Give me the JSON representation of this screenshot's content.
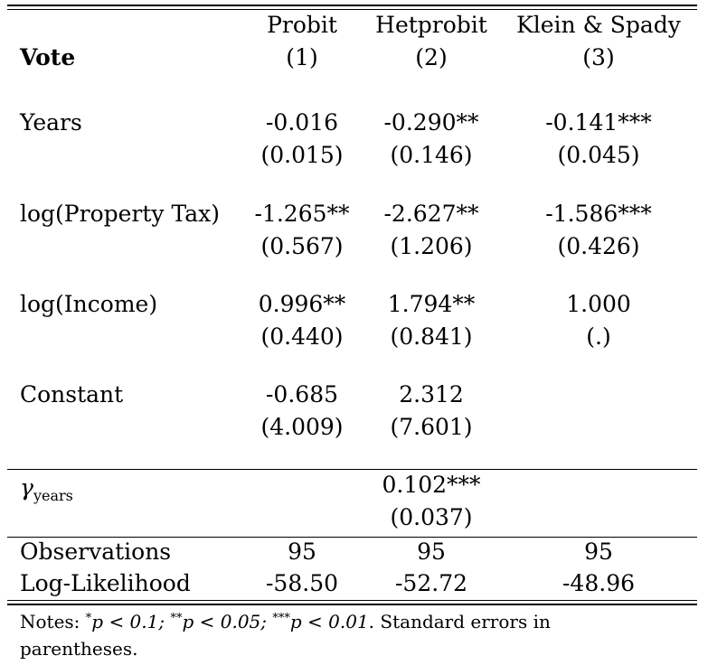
{
  "header": {
    "dep_var": "Vote",
    "columns": [
      {
        "name": "Probit",
        "num": "(1)"
      },
      {
        "name": "Hetprobit",
        "num": "(2)"
      },
      {
        "name": "Klein & Spady",
        "num": "(3)"
      }
    ]
  },
  "rows": [
    {
      "label": "Years",
      "coef": [
        "-0.016",
        "-0.290**",
        "-0.141***"
      ],
      "se": [
        "(0.015)",
        "(0.146)",
        "(0.045)"
      ]
    },
    {
      "label": "log(Property Tax)",
      "coef": [
        "-1.265**",
        "-2.627**",
        "-1.586***"
      ],
      "se": [
        "(0.567)",
        "(1.206)",
        "(0.426)"
      ]
    },
    {
      "label": "log(Income)",
      "coef": [
        "0.996**",
        "1.794**",
        "1.000"
      ],
      "se": [
        "(0.440)",
        "(0.841)",
        "(.)"
      ]
    },
    {
      "label": "Constant",
      "coef": [
        "-0.685",
        "2.312",
        ""
      ],
      "se": [
        "(4.009)",
        "(7.601)",
        ""
      ]
    }
  ],
  "gamma": {
    "symbol": "γ",
    "subscript": "years",
    "coef": "0.102***",
    "se": "(0.037)"
  },
  "stats": [
    {
      "label": "Observations",
      "values": [
        "95",
        "95",
        "95"
      ]
    },
    {
      "label": "Log-Likelihood",
      "values": [
        "-58.50",
        "-52.72",
        "-48.96"
      ]
    }
  ],
  "notes": {
    "prefix": "Notes: ",
    "s1": "*",
    "t1": "p < 0.1; ",
    "s2": "**",
    "t2": "p < 0.05; ",
    "s3": "***",
    "t3": "p < 0.01.",
    "tail": "  Standard errors in parentheses."
  }
}
